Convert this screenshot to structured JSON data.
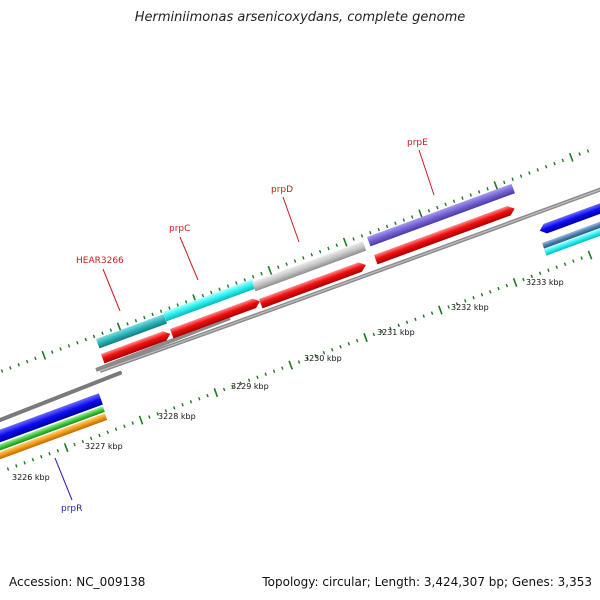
{
  "title": "Herminiimonas arsenicoxydans, complete genome",
  "footer": {
    "accession": "Accession: NC_009138",
    "summary": "Topology: circular; Length: 3,424,307 bp; Genes: 3,353"
  },
  "colors": {
    "backbone": "#8c8c8c",
    "tick": "#1e7a1e",
    "label_red": "#cc1a1a",
    "label_blue": "#2323b0"
  },
  "ticks": [
    {
      "label": "3226 kbp"
    },
    {
      "label": "3227 kbp"
    },
    {
      "label": "3228 kbp"
    },
    {
      "label": "3229 kbp"
    },
    {
      "label": "3230 kbp"
    },
    {
      "label": "3231 kbp"
    },
    {
      "label": "3232 kbp"
    },
    {
      "label": "3233 kbp"
    }
  ],
  "genes": [
    {
      "label": "HEAR3266"
    },
    {
      "label": "prpC"
    },
    {
      "label": "prpD"
    },
    {
      "label": "prpE"
    },
    {
      "label": "prpR"
    }
  ]
}
